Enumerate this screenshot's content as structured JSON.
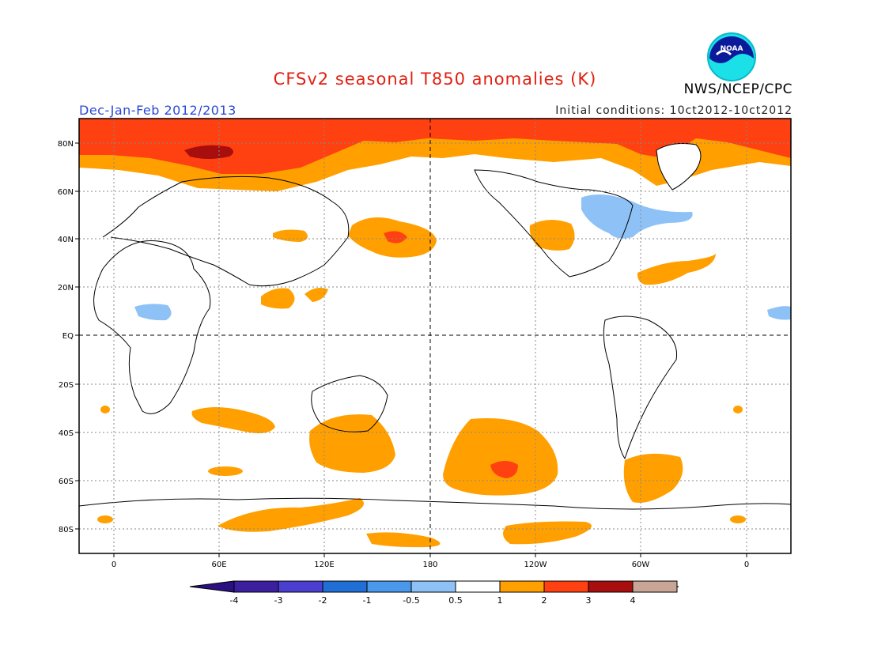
{
  "title": "CFSv2 seasonal T850 anomalies (K)",
  "season": "Dec-Jan-Feb 2012/2013",
  "initial_conditions": "Initial conditions: 10ct2012-10ct2012",
  "agency": "NWS/NCEP/CPC",
  "logo_text": "NOAA",
  "map": {
    "lat_labels": [
      "80N",
      "60N",
      "40N",
      "20N",
      "EQ",
      "20S",
      "40S",
      "60S",
      "80S"
    ],
    "lon_labels": [
      "0",
      "60E",
      "120E",
      "180",
      "120W",
      "60W",
      "0"
    ]
  },
  "colorbar": {
    "labels": [
      "-4",
      "-3",
      "-2",
      "-1",
      "-0.5",
      "0.5",
      "1",
      "2",
      "3",
      "4"
    ],
    "colors": [
      "#3b1f9e",
      "#4a3fd0",
      "#1f6fd6",
      "#4a98ec",
      "#8ec2f6",
      "#ffffff",
      "#ffa000",
      "#ff4010",
      "#a80e0e",
      "#c9a595"
    ],
    "end_low": "#2a1080",
    "end_high": "#7d5547"
  },
  "anomaly_colors": {
    "orange": "#ffa000",
    "red": "#ff4010",
    "darkred": "#a80e0e",
    "blue": "#8ec2f6"
  }
}
